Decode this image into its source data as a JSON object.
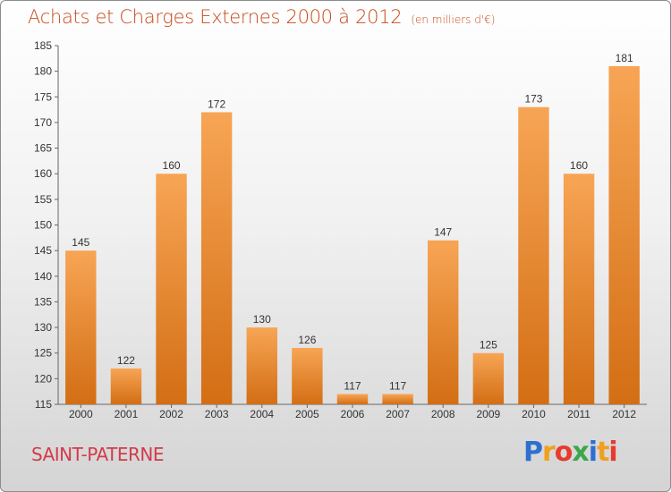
{
  "title": "Achats et Charges Externes 2000 à 2012",
  "unit": "(en milliers d'€)",
  "city": "SAINT-PATERNE",
  "logo": {
    "letters": [
      "P",
      "r",
      "o",
      "x",
      "i",
      "t",
      "i"
    ],
    "colors": [
      "#2f6fd0",
      "#f0a020",
      "#e63b2e",
      "#3aa84a",
      "#2f6fd0",
      "#f0a020",
      "#e63b2e"
    ]
  },
  "chart_data": {
    "type": "bar",
    "title": "Achats et Charges Externes 2000 à 2012",
    "subtitle": "(en milliers d'€)",
    "categories": [
      "2000",
      "2001",
      "2002",
      "2003",
      "2004",
      "2005",
      "2006",
      "2007",
      "2008",
      "2009",
      "2010",
      "2011",
      "2012"
    ],
    "values": [
      145,
      122,
      160,
      172,
      130,
      126,
      117,
      117,
      147,
      125,
      173,
      160,
      181
    ],
    "ylim": [
      115,
      185
    ],
    "yticks": [
      115,
      120,
      125,
      130,
      135,
      140,
      145,
      150,
      155,
      160,
      165,
      170,
      175,
      180,
      185
    ],
    "grid": false,
    "bar_color_top": "#f7a555",
    "bar_color_bottom": "#d36e14"
  }
}
